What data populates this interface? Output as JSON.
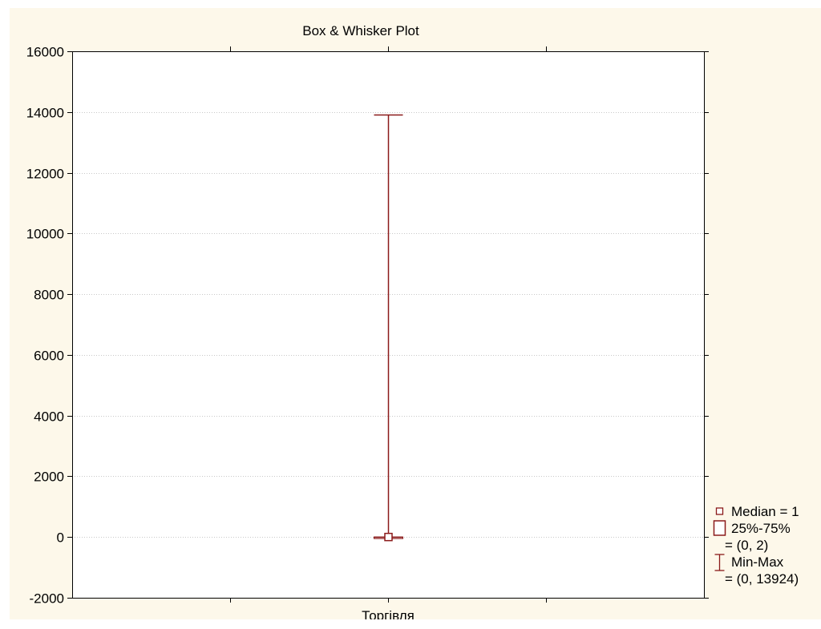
{
  "chart_data": {
    "type": "box",
    "title": "Box & Whisker Plot",
    "xlabel": "",
    "ylabel": "",
    "categories": [
      "Торгівля"
    ],
    "boxes": [
      {
        "category": "Торгівля",
        "median": 1,
        "q1": 0,
        "q3": 2,
        "min": 0,
        "max": 13924
      }
    ],
    "ylim": [
      -2000,
      16000
    ],
    "yticks": [
      "16000",
      "14000",
      "12000",
      "10000",
      "8000",
      "6000",
      "4000",
      "2000",
      "0",
      "-2000"
    ],
    "grid": true,
    "legend_position": "right",
    "legend": [
      {
        "symbol": "median",
        "lines": [
          "Median = 1"
        ]
      },
      {
        "symbol": "box",
        "lines": [
          "25%-75%",
          "= (0, 2)"
        ]
      },
      {
        "symbol": "whisker",
        "lines": [
          "Min-Max",
          "= (0, 13924)"
        ]
      }
    ],
    "colors": {
      "series": "#8b1a1a",
      "background": "#fdf8ea",
      "plot_area": "#ffffff",
      "grid": "#c8c8c8"
    }
  }
}
